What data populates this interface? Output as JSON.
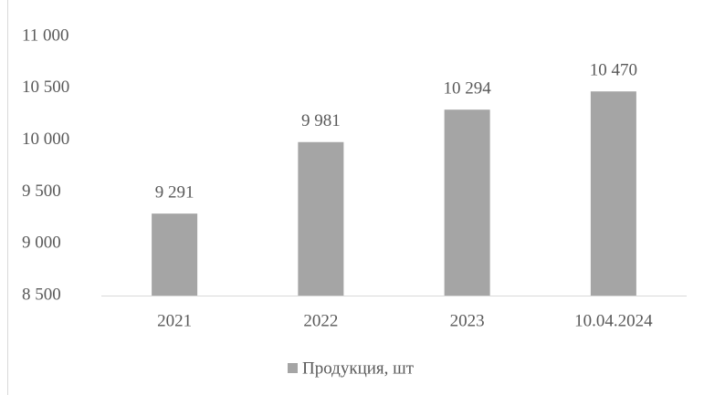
{
  "chart_data": {
    "type": "bar",
    "categories": [
      "2021",
      "2022",
      "2023",
      "10.04.2024"
    ],
    "series": [
      {
        "name": "Продукция, шт",
        "color": "#a5a5a5",
        "values": [
          9291,
          9981,
          10294,
          10470
        ],
        "value_labels": [
          "9 291",
          "9 981",
          "10 294",
          "10 470"
        ]
      }
    ],
    "ylim": [
      8500,
      11000
    ],
    "yticks": [
      {
        "value": 8500,
        "label": "8 500"
      },
      {
        "value": 9000,
        "label": "9 000"
      },
      {
        "value": 9500,
        "label": "9 500"
      },
      {
        "value": 10000,
        "label": "10 000"
      },
      {
        "value": 10500,
        "label": "10 500"
      },
      {
        "value": 11000,
        "label": "11 000"
      }
    ],
    "grid": false,
    "legend": "bottom"
  }
}
